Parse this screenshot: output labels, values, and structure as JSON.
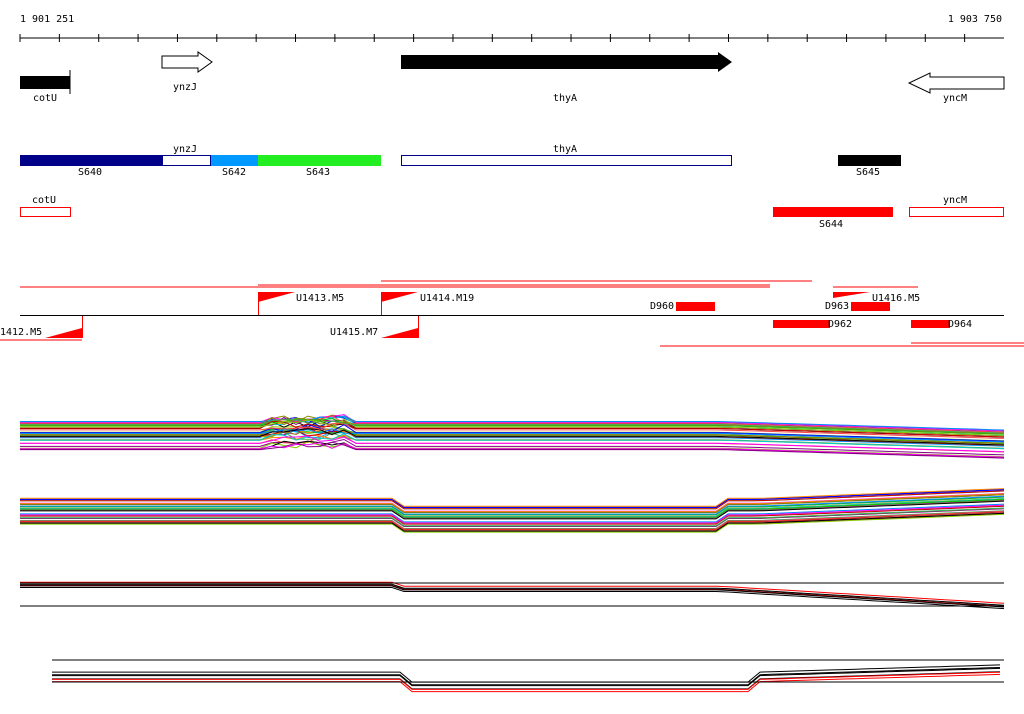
{
  "ruler": {
    "start": "1 901 251",
    "end": "1 903 750"
  },
  "genes": {
    "cotU": "cotU",
    "ynzJ": "ynzJ",
    "thyA": "thyA",
    "yncM": "yncM"
  },
  "segments": [
    "S640",
    "S642",
    "S643",
    "S645",
    "S644"
  ],
  "features": [
    "U1413.M5",
    "U1414.M19",
    "D960",
    "D963",
    "U1416.M5",
    "1412.M5",
    "U1415.M7",
    "D962",
    "D964"
  ]
}
